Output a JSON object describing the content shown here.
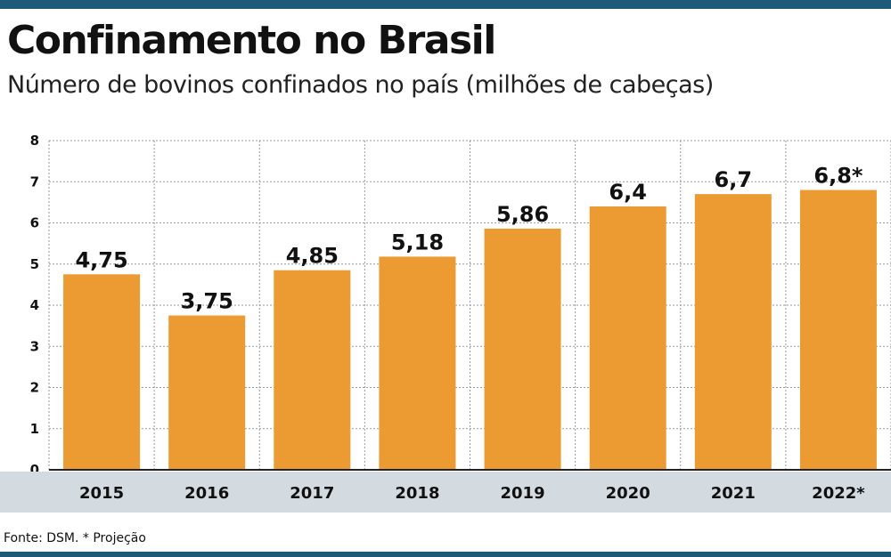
{
  "header": {
    "title": "Confinamento no Brasil",
    "subtitle": "Número de bovinos confinados no país (milhões de cabeças)"
  },
  "footer": {
    "source": "Fonte: DSM. * Projeção"
  },
  "colors": {
    "bar": "#ec9a32",
    "band": "#d4dbe0",
    "brand": "#1f5a78",
    "grid": "#9a9a9a"
  },
  "chart_data": {
    "type": "bar",
    "title": "Confinamento no Brasil",
    "subtitle": "Número de bovinos confinados no país (milhões de cabeças)",
    "categories": [
      "2015",
      "2016",
      "2017",
      "2018",
      "2019",
      "2020",
      "2021",
      "2022*"
    ],
    "values": [
      4.75,
      3.75,
      4.85,
      5.18,
      5.86,
      6.4,
      6.7,
      6.8
    ],
    "data_labels": [
      "4,75",
      "3,75",
      "4,85",
      "5,18",
      "5,86",
      "6,4",
      "6,7",
      "6,8*"
    ],
    "yticks": [
      "0",
      "1",
      "2",
      "3",
      "4",
      "5",
      "6",
      "7",
      "8"
    ],
    "ylim": [
      0,
      8
    ],
    "xlabel": "",
    "ylabel": "",
    "grid": true,
    "legend": "none"
  }
}
